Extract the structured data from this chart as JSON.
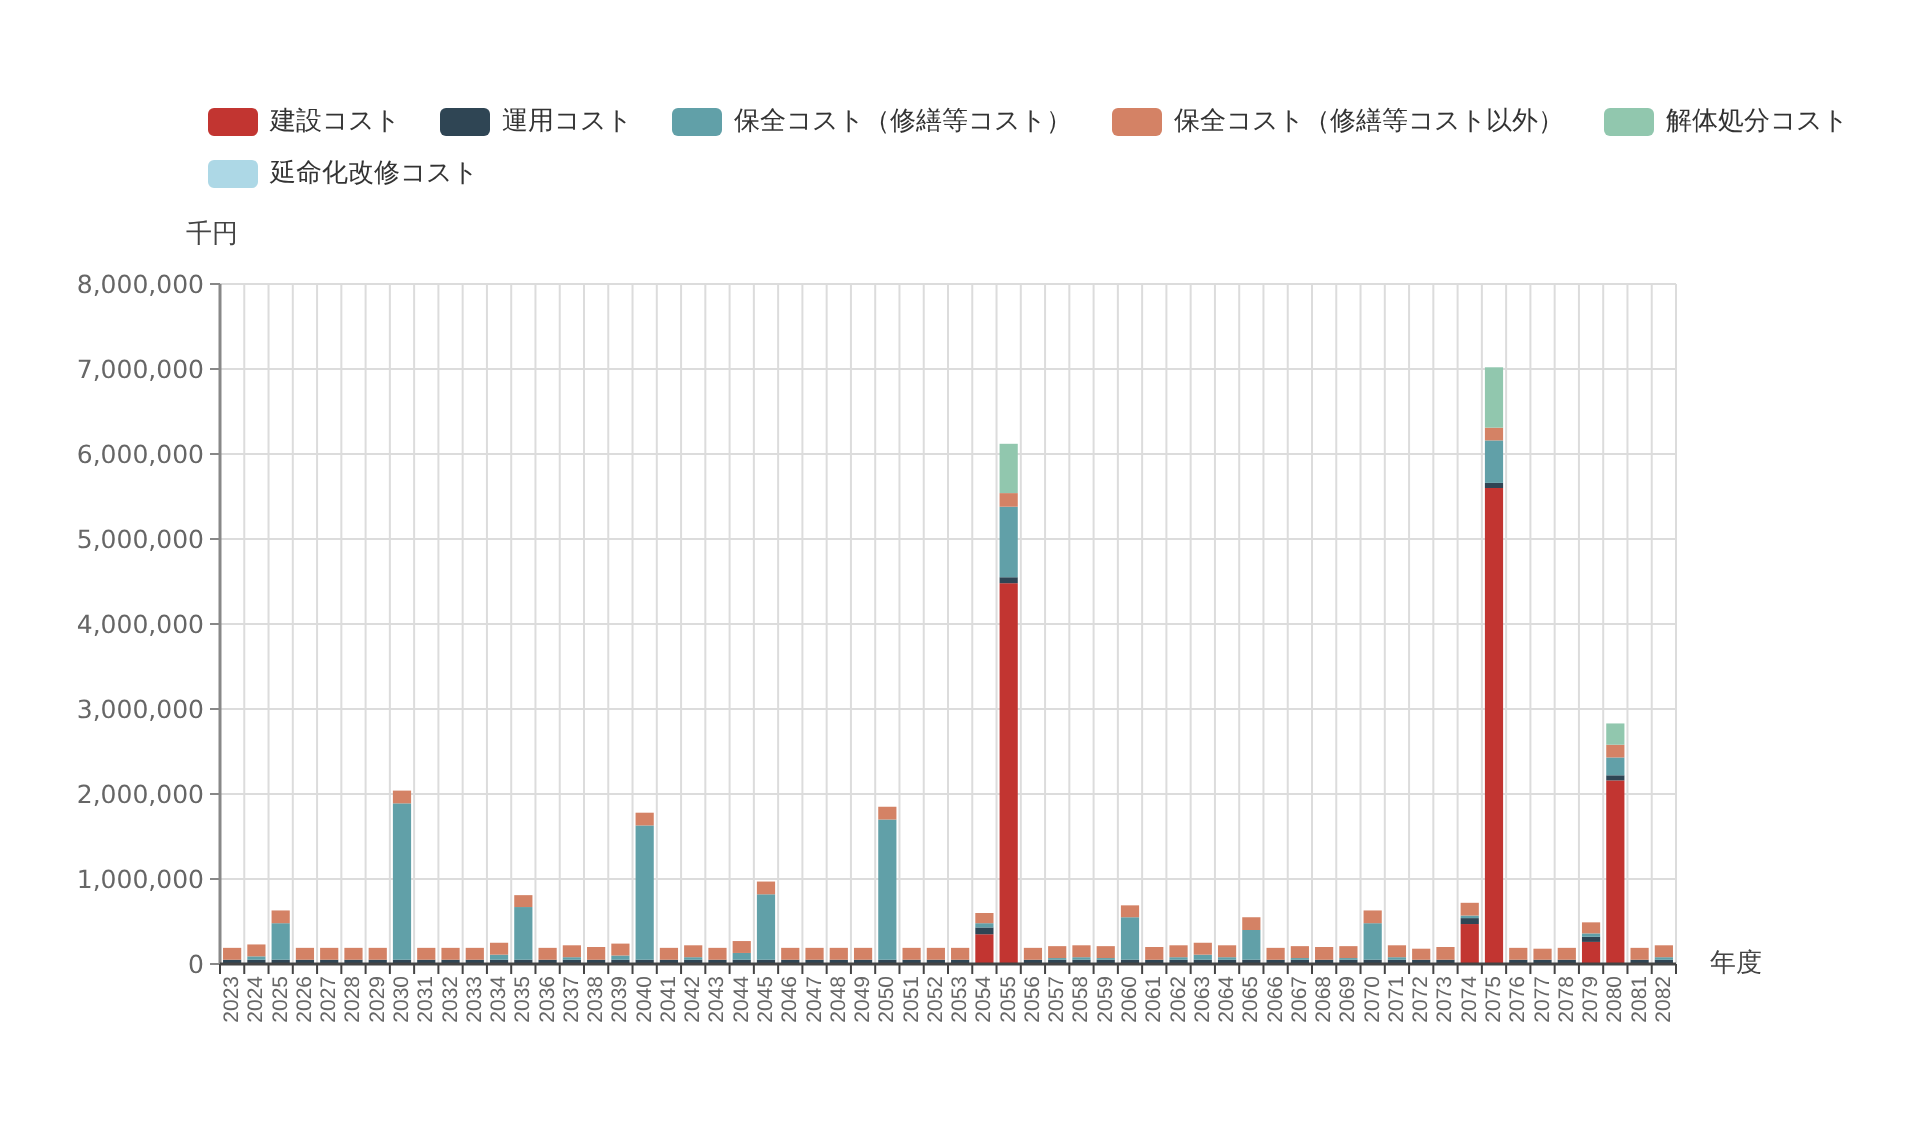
{
  "chart_data": {
    "type": "bar",
    "stacked": true,
    "xlabel": "年度",
    "ylabel": "千円",
    "legend": "top",
    "grid": true,
    "ylim": [
      0,
      8000000
    ],
    "yticks": [
      {
        "value": 0,
        "label": "0"
      },
      {
        "value": 1000000,
        "label": "1,000,000"
      },
      {
        "value": 2000000,
        "label": "2,000,000"
      },
      {
        "value": 3000000,
        "label": "3,000,000"
      },
      {
        "value": 4000000,
        "label": "4,000,000"
      },
      {
        "value": 5000000,
        "label": "5,000,000"
      },
      {
        "value": 6000000,
        "label": "6,000,000"
      },
      {
        "value": 7000000,
        "label": "7,000,000"
      },
      {
        "value": 8000000,
        "label": "8,000,000"
      }
    ],
    "categories": [
      "2023",
      "2024",
      "2025",
      "2026",
      "2027",
      "2028",
      "2029",
      "2030",
      "2031",
      "2032",
      "2033",
      "2034",
      "2035",
      "2036",
      "2037",
      "2038",
      "2039",
      "2040",
      "2041",
      "2042",
      "2043",
      "2044",
      "2045",
      "2046",
      "2047",
      "2048",
      "2049",
      "2050",
      "2051",
      "2052",
      "2053",
      "2054",
      "2055",
      "2056",
      "2057",
      "2058",
      "2059",
      "2060",
      "2061",
      "2062",
      "2063",
      "2064",
      "2065",
      "2066",
      "2067",
      "2068",
      "2069",
      "2070",
      "2071",
      "2072",
      "2073",
      "2074",
      "2075",
      "2076",
      "2077",
      "2078",
      "2079",
      "2080",
      "2081",
      "2082"
    ],
    "series": [
      {
        "name": "建設コスト",
        "color": "#c23531",
        "values": [
          null,
          null,
          null,
          null,
          null,
          null,
          null,
          null,
          null,
          null,
          null,
          null,
          null,
          null,
          null,
          null,
          null,
          null,
          null,
          null,
          null,
          null,
          null,
          null,
          null,
          null,
          null,
          null,
          null,
          null,
          null,
          350000,
          4480000,
          null,
          null,
          null,
          null,
          null,
          null,
          null,
          null,
          null,
          null,
          null,
          null,
          null,
          null,
          null,
          null,
          null,
          null,
          470000,
          5600000,
          null,
          null,
          null,
          260000,
          2160000,
          null,
          null
        ]
      },
      {
        "name": "運用コスト",
        "color": "#2f4554",
        "values": [
          50000,
          50000,
          50000,
          50000,
          50000,
          50000,
          50000,
          50000,
          50000,
          50000,
          50000,
          50000,
          50000,
          50000,
          50000,
          50000,
          50000,
          50000,
          50000,
          50000,
          50000,
          50000,
          50000,
          50000,
          50000,
          50000,
          50000,
          50000,
          50000,
          50000,
          50000,
          80000,
          70000,
          50000,
          50000,
          50000,
          50000,
          50000,
          50000,
          50000,
          50000,
          50000,
          50000,
          50000,
          50000,
          50000,
          50000,
          50000,
          50000,
          50000,
          50000,
          70000,
          60000,
          50000,
          50000,
          50000,
          60000,
          60000,
          50000,
          50000
        ]
      },
      {
        "name": "保全コスト（修繕等コスト）",
        "color": "#61a0a8",
        "values": [
          null,
          40000,
          430000,
          null,
          null,
          null,
          null,
          1840000,
          null,
          null,
          null,
          60000,
          620000,
          null,
          30000,
          null,
          50000,
          1580000,
          null,
          30000,
          null,
          80000,
          770000,
          null,
          null,
          null,
          null,
          1650000,
          null,
          null,
          null,
          50000,
          830000,
          null,
          20000,
          30000,
          20000,
          500000,
          null,
          30000,
          60000,
          30000,
          350000,
          null,
          20000,
          null,
          20000,
          430000,
          30000,
          null,
          null,
          30000,
          500000,
          null,
          null,
          null,
          40000,
          210000,
          null,
          30000
        ]
      },
      {
        "name": "保全コスト（修繕等コスト以外）",
        "color": "#d48265",
        "values": [
          140000,
          140000,
          150000,
          140000,
          140000,
          140000,
          140000,
          150000,
          140000,
          140000,
          140000,
          140000,
          140000,
          140000,
          140000,
          150000,
          140000,
          150000,
          140000,
          140000,
          140000,
          140000,
          150000,
          140000,
          140000,
          140000,
          140000,
          150000,
          140000,
          140000,
          140000,
          120000,
          160000,
          140000,
          140000,
          140000,
          140000,
          140000,
          150000,
          140000,
          140000,
          140000,
          150000,
          140000,
          140000,
          150000,
          140000,
          150000,
          140000,
          130000,
          150000,
          150000,
          150000,
          140000,
          130000,
          140000,
          130000,
          150000,
          140000,
          140000
        ]
      },
      {
        "name": "解体処分コスト",
        "color": "#91c7ae",
        "values": [
          null,
          null,
          null,
          null,
          null,
          null,
          null,
          null,
          null,
          null,
          null,
          null,
          null,
          null,
          null,
          null,
          null,
          null,
          null,
          null,
          null,
          null,
          null,
          null,
          null,
          null,
          null,
          null,
          null,
          null,
          null,
          null,
          580000,
          null,
          null,
          null,
          null,
          null,
          null,
          null,
          null,
          null,
          null,
          null,
          null,
          null,
          null,
          null,
          null,
          null,
          null,
          null,
          710000,
          null,
          null,
          null,
          null,
          250000,
          null,
          null
        ]
      },
      {
        "name": "延命化改修コスト",
        "color": "#add8e6",
        "values": [
          null,
          null,
          null,
          null,
          null,
          null,
          null,
          null,
          null,
          null,
          null,
          null,
          null,
          null,
          null,
          null,
          null,
          null,
          null,
          null,
          null,
          null,
          null,
          null,
          null,
          null,
          null,
          null,
          null,
          null,
          null,
          null,
          null,
          null,
          null,
          null,
          null,
          null,
          null,
          null,
          null,
          null,
          null,
          null,
          null,
          null,
          null,
          null,
          null,
          null,
          null,
          null,
          null,
          null,
          null,
          null,
          null,
          null,
          null,
          null
        ]
      }
    ]
  }
}
